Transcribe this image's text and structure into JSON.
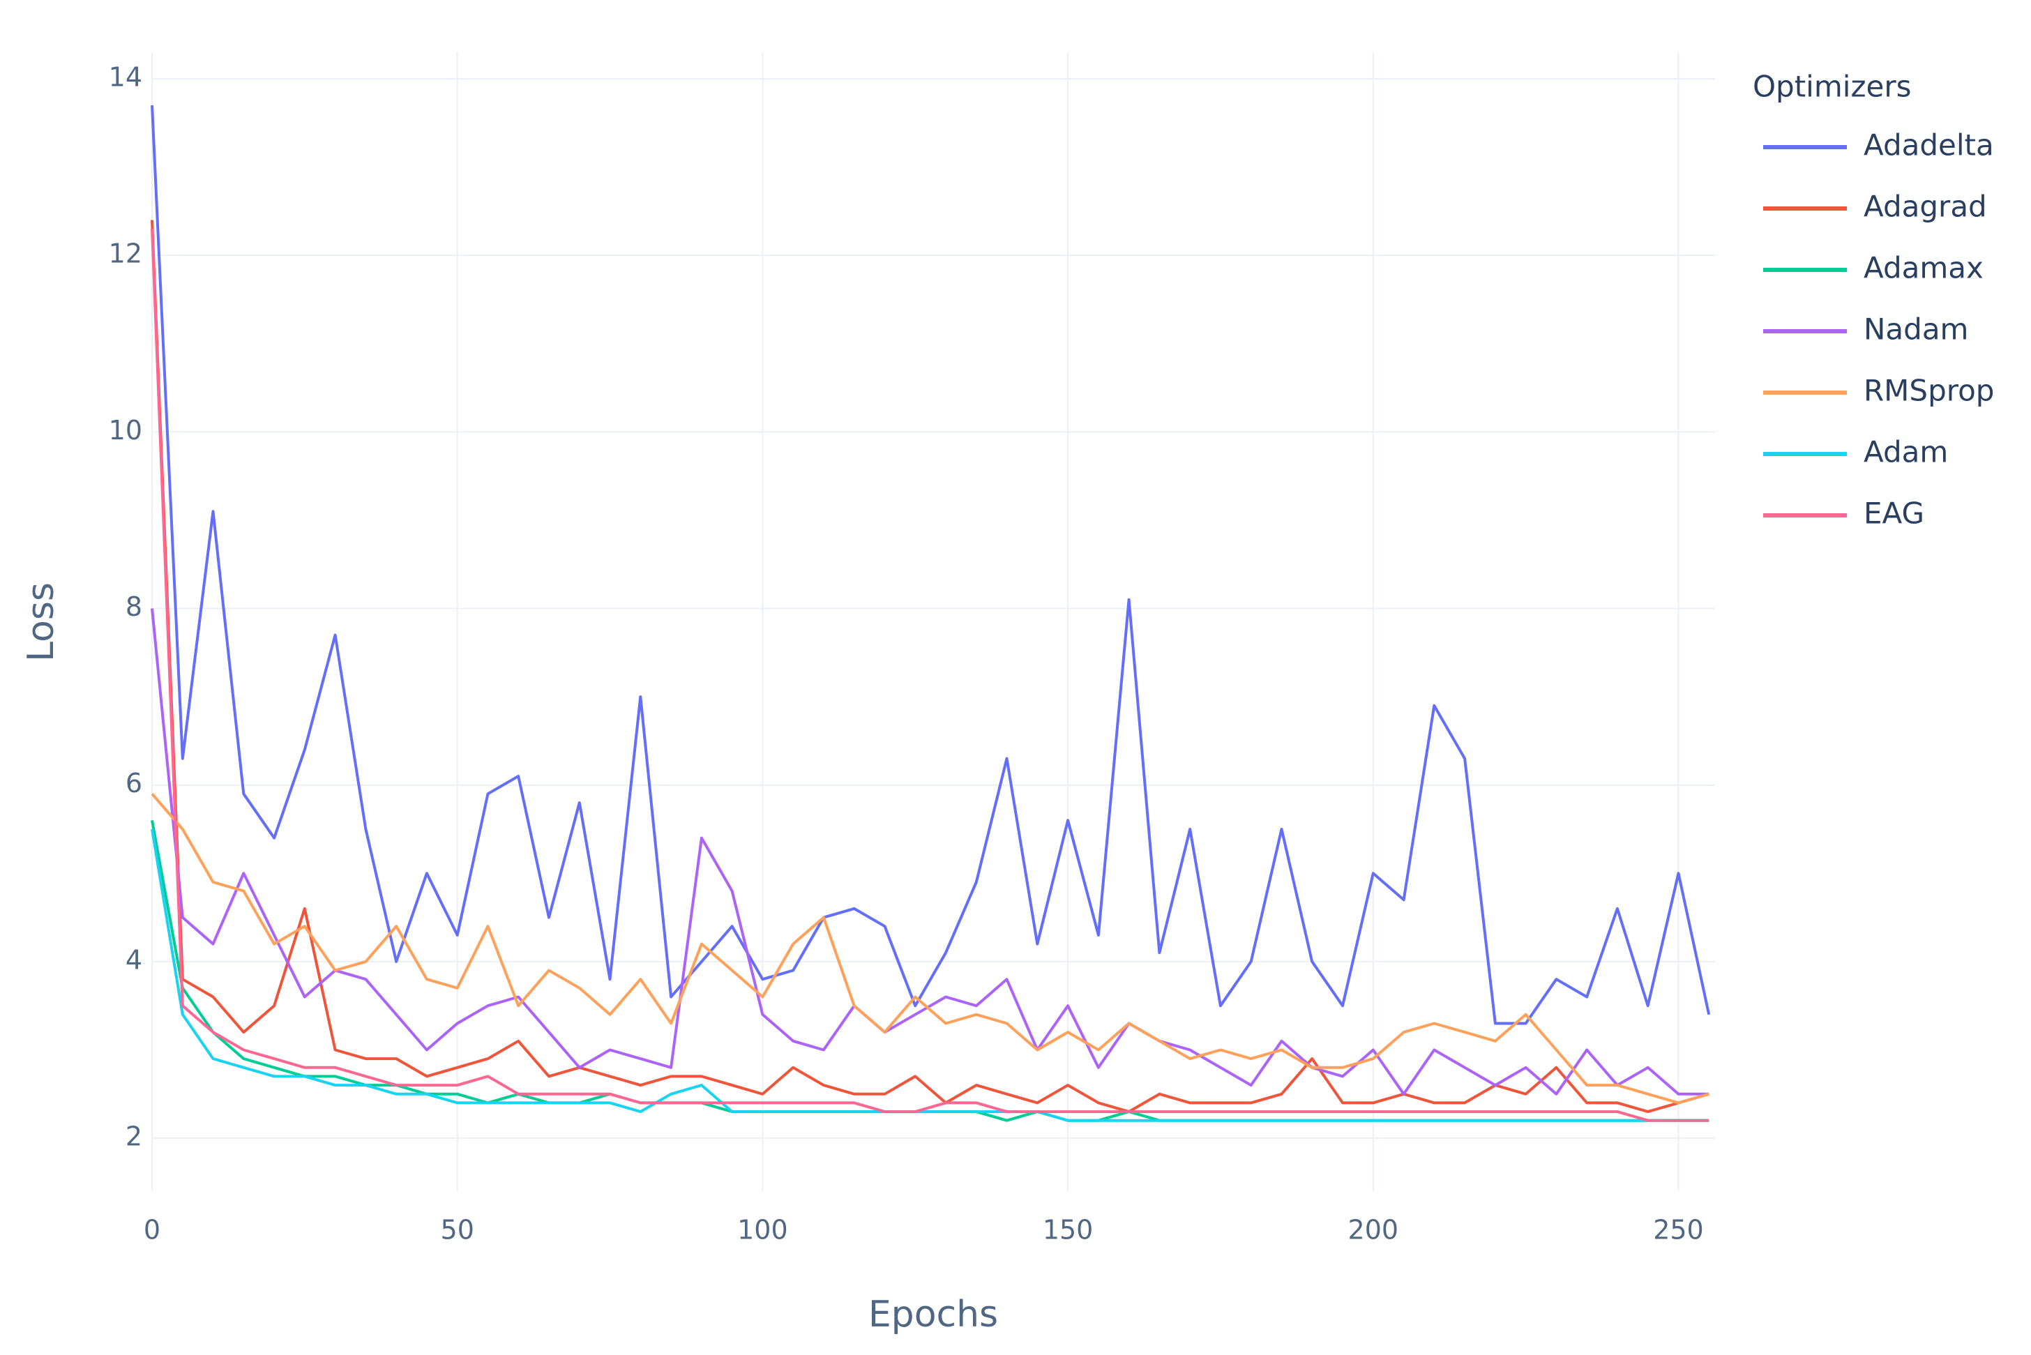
{
  "chart_data": {
    "type": "line",
    "x_label": "Epochs",
    "y_label": "Loss",
    "legend_title": "Optimizers",
    "x": [
      0,
      5,
      10,
      15,
      20,
      25,
      30,
      35,
      40,
      45,
      50,
      55,
      60,
      65,
      70,
      75,
      80,
      85,
      90,
      95,
      100,
      105,
      110,
      115,
      120,
      125,
      130,
      135,
      140,
      145,
      150,
      155,
      160,
      165,
      170,
      175,
      180,
      185,
      190,
      195,
      200,
      205,
      210,
      215,
      220,
      225,
      230,
      235,
      240,
      245,
      250,
      255
    ],
    "xlim": [
      0,
      256
    ],
    "xticks": [
      0,
      50,
      100,
      150,
      200,
      250
    ],
    "ylim": [
      1.4,
      14.3
    ],
    "yticks": [
      2,
      4,
      6,
      8,
      10,
      12,
      14
    ],
    "grid": true,
    "legend_position": "right",
    "series": [
      {
        "name": "Adadelta",
        "color": "#636efa",
        "values": [
          13.7,
          6.3,
          9.1,
          5.9,
          5.4,
          6.4,
          7.7,
          5.5,
          4.0,
          5.0,
          4.3,
          5.9,
          6.1,
          4.5,
          5.8,
          3.8,
          7.0,
          3.6,
          4.0,
          4.4,
          3.8,
          3.9,
          4.5,
          4.6,
          4.4,
          3.5,
          4.1,
          4.9,
          6.3,
          4.2,
          5.6,
          4.3,
          8.1,
          4.1,
          5.5,
          3.5,
          4.0,
          5.5,
          4.0,
          3.5,
          5.0,
          4.7,
          6.9,
          6.3,
          3.3,
          3.3,
          3.8,
          3.6,
          4.6,
          3.5,
          5.0,
          3.4
        ]
      },
      {
        "name": "Adagrad",
        "color": "#ef553b",
        "values": [
          12.4,
          3.8,
          3.6,
          3.2,
          3.5,
          4.6,
          3.0,
          2.9,
          2.9,
          2.7,
          2.8,
          2.9,
          3.1,
          2.7,
          2.8,
          2.7,
          2.6,
          2.7,
          2.7,
          2.6,
          2.5,
          2.8,
          2.6,
          2.5,
          2.5,
          2.7,
          2.4,
          2.6,
          2.5,
          2.4,
          2.6,
          2.4,
          2.3,
          2.5,
          2.4,
          2.4,
          2.4,
          2.5,
          2.9,
          2.4,
          2.4,
          2.5,
          2.4,
          2.4,
          2.6,
          2.5,
          2.8,
          2.4,
          2.4,
          2.3,
          2.4,
          2.5
        ]
      },
      {
        "name": "Adamax",
        "color": "#00cc96",
        "values": [
          5.6,
          3.7,
          3.2,
          2.9,
          2.8,
          2.7,
          2.7,
          2.6,
          2.6,
          2.5,
          2.5,
          2.4,
          2.5,
          2.4,
          2.4,
          2.5,
          2.4,
          2.4,
          2.4,
          2.3,
          2.3,
          2.3,
          2.3,
          2.3,
          2.3,
          2.3,
          2.3,
          2.3,
          2.2,
          2.3,
          2.2,
          2.2,
          2.3,
          2.2,
          2.2,
          2.2,
          2.2,
          2.2,
          2.2,
          2.2,
          2.2,
          2.2,
          2.2,
          2.2,
          2.2,
          2.2,
          2.2,
          2.2,
          2.2,
          2.2,
          2.2,
          2.2
        ]
      },
      {
        "name": "Nadam",
        "color": "#ab63fa",
        "values": [
          8.0,
          4.5,
          4.2,
          5.0,
          4.3,
          3.6,
          3.9,
          3.8,
          3.4,
          3.0,
          3.3,
          3.5,
          3.6,
          3.2,
          2.8,
          3.0,
          2.9,
          2.8,
          5.4,
          4.8,
          3.4,
          3.1,
          3.0,
          3.5,
          3.2,
          3.4,
          3.6,
          3.5,
          3.8,
          3.0,
          3.5,
          2.8,
          3.3,
          3.1,
          3.0,
          2.8,
          2.6,
          3.1,
          2.8,
          2.7,
          3.0,
          2.5,
          3.0,
          2.8,
          2.6,
          2.8,
          2.5,
          3.0,
          2.6,
          2.8,
          2.5,
          2.5
        ]
      },
      {
        "name": "RMSprop",
        "color": "#ffa15a",
        "values": [
          5.9,
          5.5,
          4.9,
          4.8,
          4.2,
          4.4,
          3.9,
          4.0,
          4.4,
          3.8,
          3.7,
          4.4,
          3.5,
          3.9,
          3.7,
          3.4,
          3.8,
          3.3,
          4.2,
          3.9,
          3.6,
          4.2,
          4.5,
          3.5,
          3.2,
          3.6,
          3.3,
          3.4,
          3.3,
          3.0,
          3.2,
          3.0,
          3.3,
          3.1,
          2.9,
          3.0,
          2.9,
          3.0,
          2.8,
          2.8,
          2.9,
          3.2,
          3.3,
          3.2,
          3.1,
          3.4,
          3.0,
          2.6,
          2.6,
          2.5,
          2.4,
          2.5
        ]
      },
      {
        "name": "Adam",
        "color": "#19d3f3",
        "values": [
          5.5,
          3.4,
          2.9,
          2.8,
          2.7,
          2.7,
          2.6,
          2.6,
          2.5,
          2.5,
          2.4,
          2.4,
          2.4,
          2.4,
          2.4,
          2.4,
          2.3,
          2.5,
          2.6,
          2.3,
          2.3,
          2.3,
          2.3,
          2.3,
          2.3,
          2.3,
          2.3,
          2.3,
          2.3,
          2.3,
          2.2,
          2.2,
          2.2,
          2.2,
          2.2,
          2.2,
          2.2,
          2.2,
          2.2,
          2.2,
          2.2,
          2.2,
          2.2,
          2.2,
          2.2,
          2.2,
          2.2,
          2.2,
          2.2,
          2.2,
          2.2,
          2.2
        ]
      },
      {
        "name": "EAG",
        "color": "#ff6692",
        "values": [
          12.3,
          3.5,
          3.2,
          3.0,
          2.9,
          2.8,
          2.8,
          2.7,
          2.6,
          2.6,
          2.6,
          2.7,
          2.5,
          2.5,
          2.5,
          2.5,
          2.4,
          2.4,
          2.4,
          2.4,
          2.4,
          2.4,
          2.4,
          2.4,
          2.3,
          2.3,
          2.4,
          2.4,
          2.3,
          2.3,
          2.3,
          2.3,
          2.3,
          2.3,
          2.3,
          2.3,
          2.3,
          2.3,
          2.3,
          2.3,
          2.3,
          2.3,
          2.3,
          2.3,
          2.3,
          2.3,
          2.3,
          2.3,
          2.3,
          2.2,
          2.2,
          2.2
        ]
      }
    ]
  }
}
